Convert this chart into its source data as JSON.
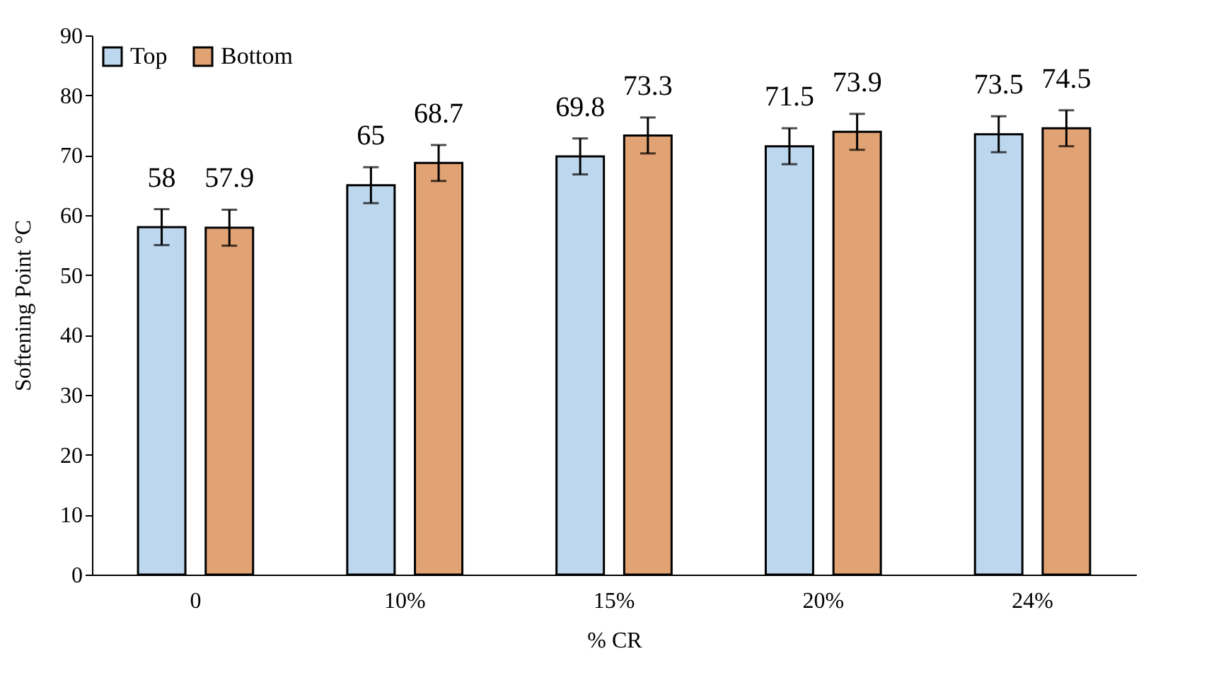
{
  "chart_data": {
    "type": "bar",
    "xlabel": "% CR",
    "ylabel": "Softening Point °C",
    "categories": [
      "0",
      "10%",
      "15%",
      "20%",
      "24%"
    ],
    "series": [
      {
        "name": "Top",
        "color": "#bdd7ee",
        "values": [
          58,
          65,
          69.8,
          71.5,
          73.5
        ],
        "errors": [
          3,
          3,
          3,
          3,
          3
        ]
      },
      {
        "name": "Bottom",
        "color": "#e2a374",
        "values": [
          57.9,
          68.7,
          73.3,
          73.9,
          74.5
        ],
        "errors": [
          3,
          3,
          3,
          3,
          3
        ]
      }
    ],
    "ylim": [
      0,
      90
    ],
    "yticks": [
      0,
      10,
      20,
      30,
      40,
      50,
      60,
      70,
      80,
      90
    ],
    "data_labels": true,
    "grid": false,
    "legend": "top left"
  }
}
